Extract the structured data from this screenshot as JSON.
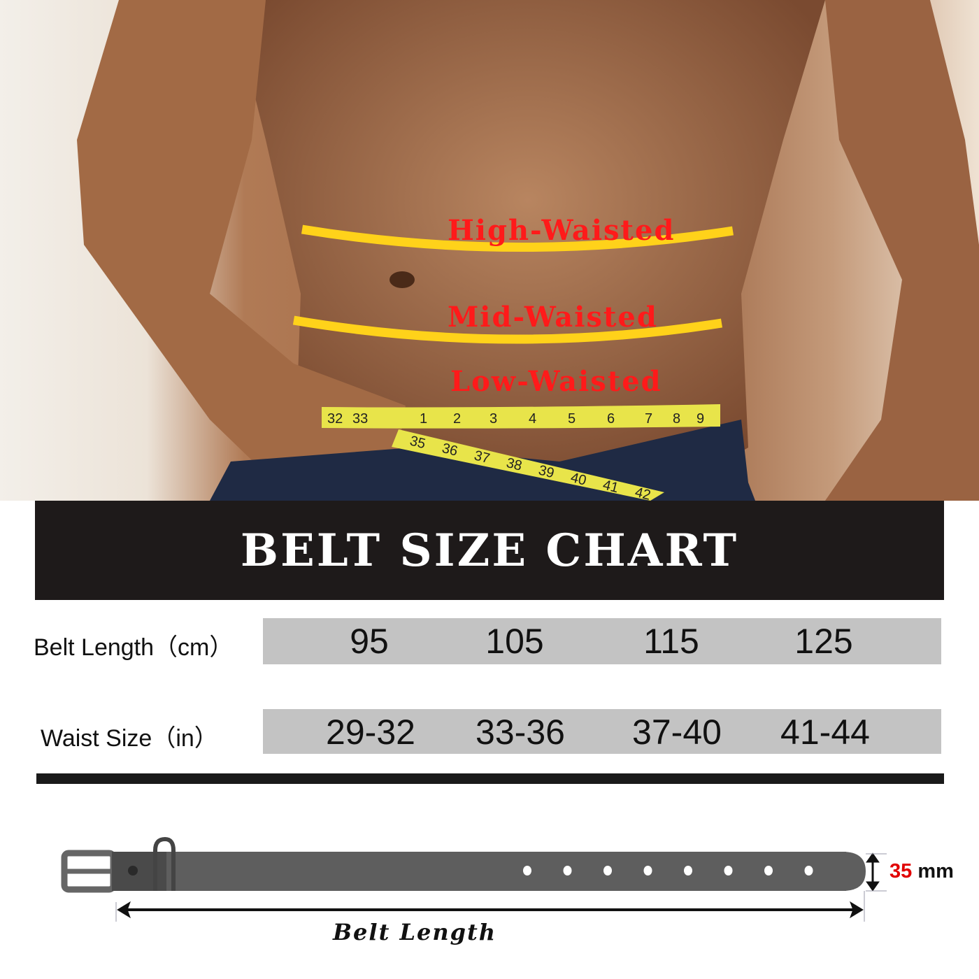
{
  "photo": {
    "waist_lines": [
      {
        "label": "High-Waisted"
      },
      {
        "label": "Mid-Waisted"
      },
      {
        "label": "Low-Waisted"
      }
    ],
    "line_color": "#ffd21a",
    "label_color": "#ff1a1a",
    "tape_numbers_upper": [
      "32",
      "33",
      "1",
      "2",
      "3",
      "4",
      "5",
      "6",
      "7",
      "8",
      "9"
    ],
    "tape_numbers_lower": [
      "35",
      "36",
      "37",
      "38",
      "39",
      "40",
      "41",
      "42"
    ]
  },
  "chart": {
    "title": "BELT SIZE CHART",
    "rows": [
      {
        "label": "Belt Length（cm）",
        "values": [
          "95",
          "105",
          "115",
          "125"
        ]
      },
      {
        "label": "Waist Size（in）",
        "values": [
          "29-32",
          "33-36",
          "37-40",
          "41-44"
        ]
      }
    ]
  },
  "belt_diagram": {
    "length_label": "Belt Length",
    "width_value": "35",
    "width_unit": "mm",
    "width_value_color": "#e10000",
    "hole_count": 8
  }
}
